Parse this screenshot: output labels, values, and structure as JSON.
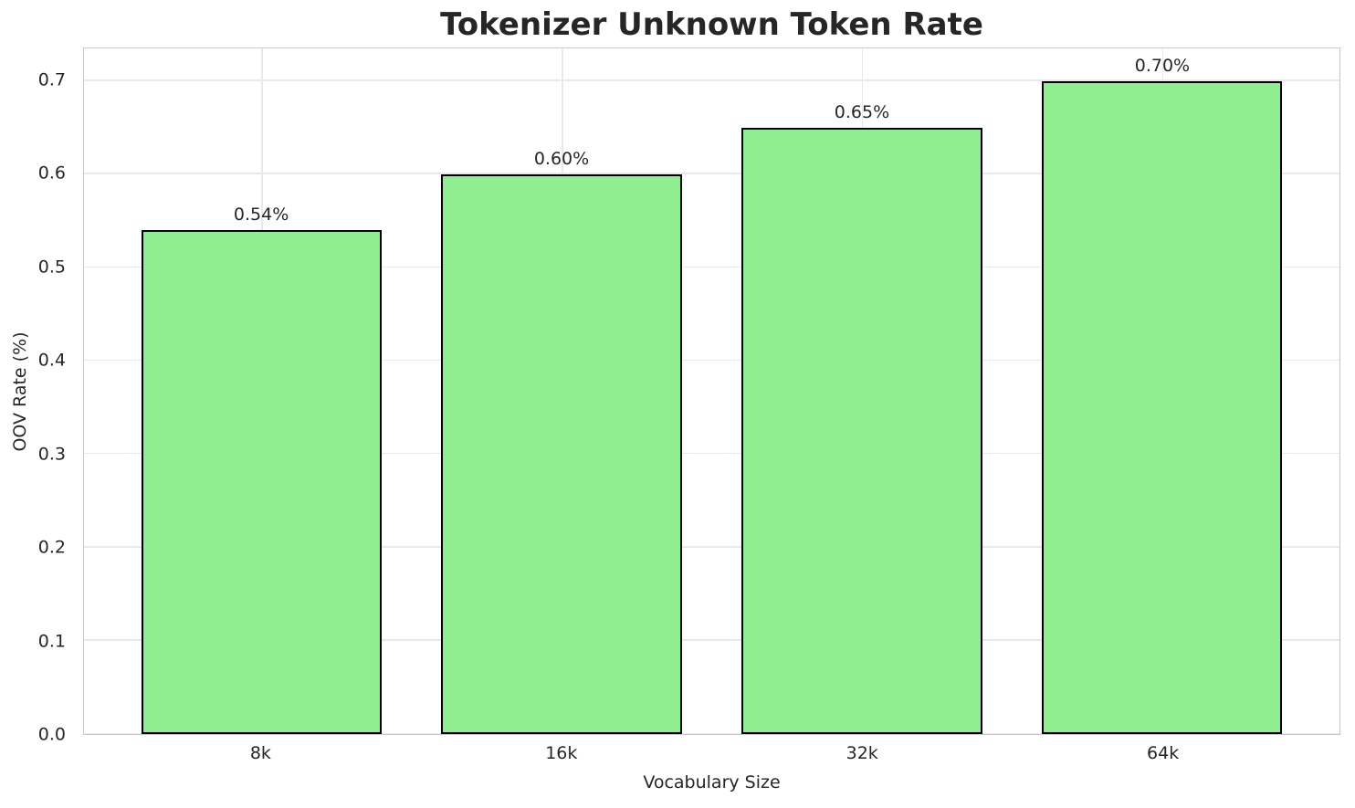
{
  "chart_data": {
    "type": "bar",
    "title": "Tokenizer Unknown Token Rate",
    "xlabel": "Vocabulary Size",
    "ylabel": "OOV Rate (%)",
    "categories": [
      "8k",
      "16k",
      "32k",
      "64k"
    ],
    "values": [
      0.54,
      0.6,
      0.65,
      0.7
    ],
    "bar_labels": [
      "0.54%",
      "0.60%",
      "0.65%",
      "0.70%"
    ],
    "ylim": [
      0,
      0.735
    ],
    "yticks": [
      0.0,
      0.1,
      0.2,
      0.3,
      0.4,
      0.5,
      0.6,
      0.7
    ],
    "ytick_labels": [
      "0.0",
      "0.1",
      "0.2",
      "0.3",
      "0.4",
      "0.5",
      "0.6",
      "0.7"
    ],
    "grid": true,
    "legend_position": "none",
    "bar_rel_width": 0.8,
    "colors": {
      "bar_fill": "#90EE90",
      "bar_edge": "#000000",
      "grid_line": "#e9e9e9",
      "axis_spine": "#c9c9c9",
      "text": "#262626",
      "background": "#ffffff"
    }
  }
}
